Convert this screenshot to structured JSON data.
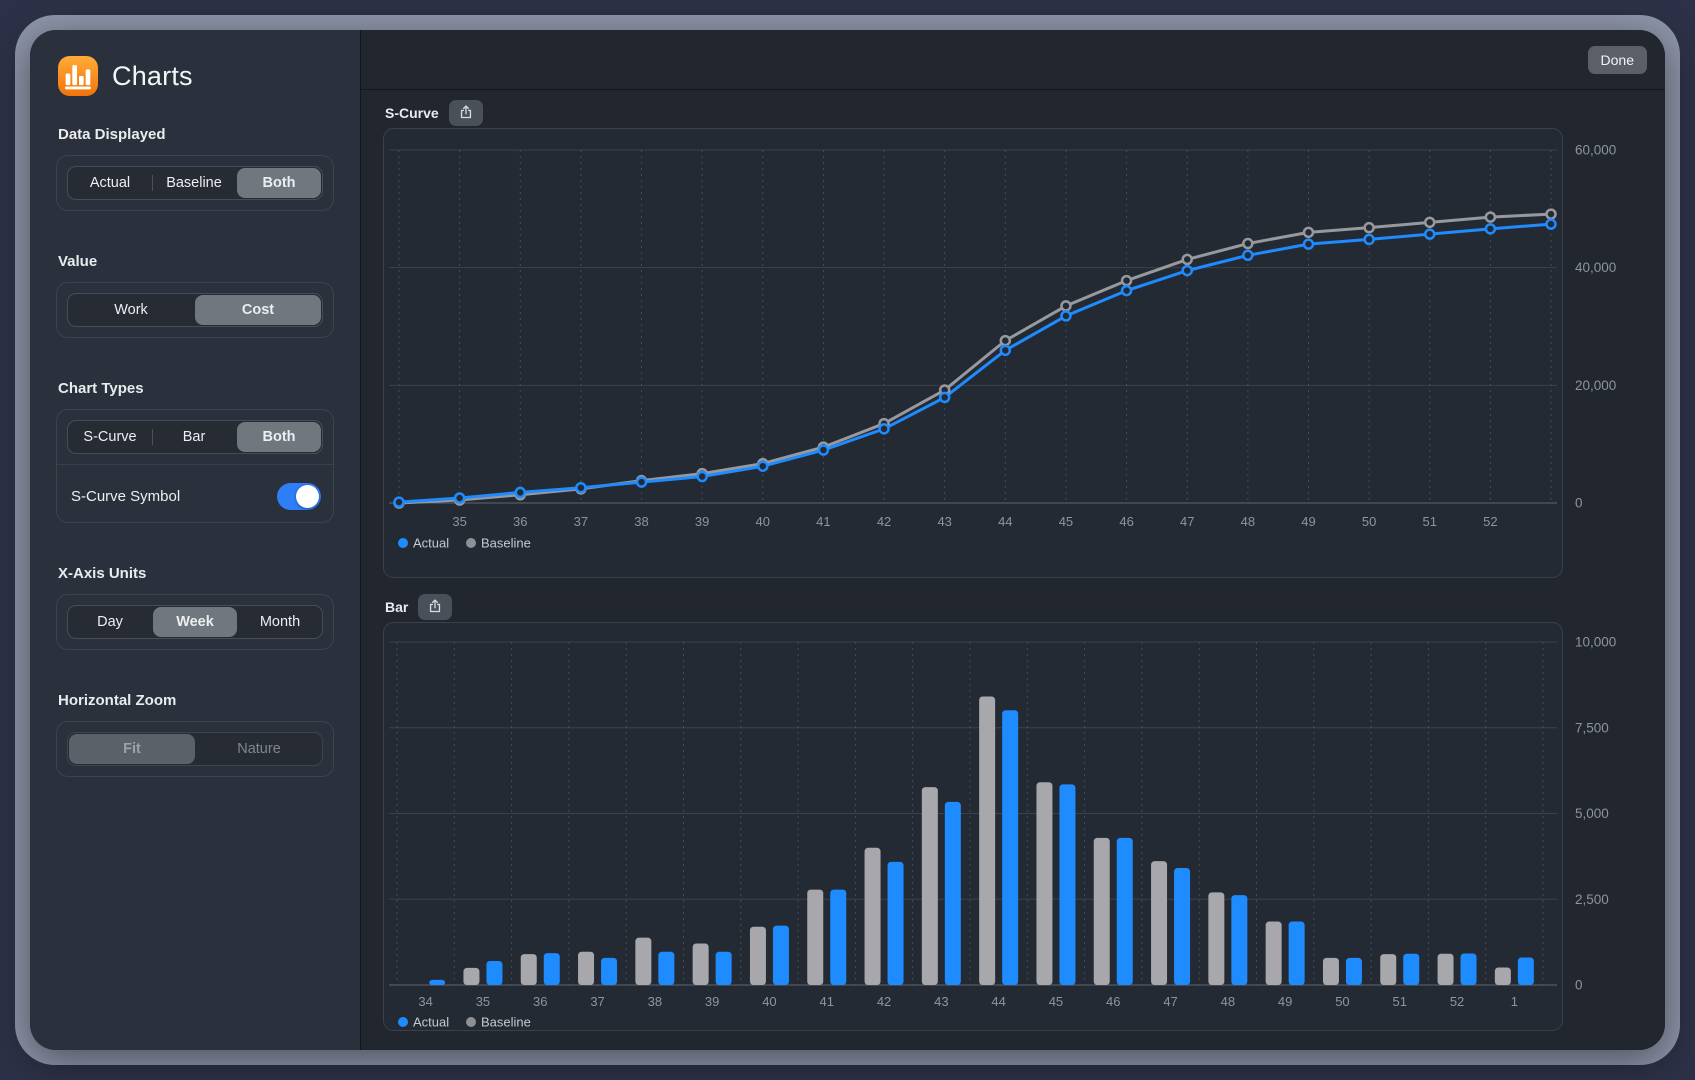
{
  "topbar": {
    "done_label": "Done"
  },
  "sidebar": {
    "app_title": "Charts",
    "data_displayed": {
      "label": "Data Displayed",
      "options": [
        "Actual",
        "Baseline",
        "Both"
      ],
      "selected": "Both"
    },
    "value": {
      "label": "Value",
      "options": [
        "Work",
        "Cost"
      ],
      "selected": "Cost"
    },
    "chart_types": {
      "label": "Chart Types",
      "options": [
        "S-Curve",
        "Bar",
        "Both"
      ],
      "selected": "Both"
    },
    "scurve_symbol": {
      "label": "S-Curve Symbol",
      "state": "on"
    },
    "x_axis_units": {
      "label": "X-Axis Units",
      "options": [
        "Day",
        "Week",
        "Month"
      ],
      "selected": "Week"
    },
    "horizontal_zoom": {
      "label": "Horizontal Zoom",
      "options": [
        "Fit",
        "Nature"
      ],
      "selected": "Fit",
      "disabled": true
    }
  },
  "colors": {
    "accent_blue": "#1E8BFF",
    "baseline_gray": "#A7A7AC",
    "toggle_blue": "#2E7EF7",
    "app_icon_orange": "#F4730C"
  },
  "chart_data": [
    {
      "type": "line",
      "title": "S-Curve",
      "x_tick_labels": [
        "",
        "35",
        "36",
        "37",
        "38",
        "39",
        "40",
        "41",
        "42",
        "43",
        "44",
        "45",
        "46",
        "47",
        "48",
        "49",
        "50",
        "51",
        "52",
        ""
      ],
      "x_weeks": [
        34,
        35,
        36,
        37,
        38,
        39,
        40,
        41,
        42,
        43,
        44,
        45,
        46,
        47,
        48,
        49,
        50,
        51,
        52,
        1
      ],
      "ylim": [
        0,
        60000
      ],
      "yticks": [
        0,
        20000,
        40000,
        60000
      ],
      "ytick_labels": [
        "0",
        "20,000",
        "40,000",
        "60,000"
      ],
      "grid": true,
      "legend_position": "bottom-left",
      "series": [
        {
          "name": "Baseline",
          "color": "#97999E",
          "values": [
            0,
            500,
            1400,
            2400,
            3800,
            5000,
            6700,
            9500,
            13500,
            19200,
            27600,
            33500,
            37800,
            41400,
            44100,
            46000,
            46800,
            47700,
            48600,
            49100
          ]
        },
        {
          "name": "Actual",
          "color": "#1E8BFF",
          "values": [
            150,
            850,
            1800,
            2600,
            3550,
            4500,
            6250,
            9000,
            12600,
            17950,
            25950,
            31800,
            36100,
            39500,
            42100,
            44000,
            44800,
            45700,
            46600,
            47400
          ]
        }
      ],
      "legend": [
        {
          "label": "Actual",
          "color": "#1E8BFF"
        },
        {
          "label": "Baseline",
          "color": "#8E9095"
        }
      ]
    },
    {
      "type": "bar",
      "title": "Bar",
      "x_tick_labels": [
        "34",
        "35",
        "36",
        "37",
        "38",
        "39",
        "40",
        "41",
        "42",
        "43",
        "44",
        "45",
        "46",
        "47",
        "48",
        "49",
        "50",
        "51",
        "52",
        "1"
      ],
      "ylim": [
        0,
        10000
      ],
      "yticks": [
        0,
        2500,
        5000,
        7500,
        10000
      ],
      "ytick_labels": [
        "0",
        "2,500",
        "5,000",
        "7,500",
        "10,000"
      ],
      "grid": true,
      "legend_position": "bottom-left",
      "series": [
        {
          "name": "Baseline",
          "color": "#A7A7AC",
          "values": [
            0,
            500,
            900,
            970,
            1380,
            1210,
            1700,
            2780,
            4000,
            5770,
            8410,
            5910,
            4290,
            3610,
            2700,
            1850,
            790,
            900,
            910,
            510
          ]
        },
        {
          "name": "Actual",
          "color": "#1E8BFF",
          "values": [
            150,
            700,
            930,
            790,
            970,
            970,
            1730,
            2780,
            3590,
            5340,
            8010,
            5850,
            4290,
            3410,
            2620,
            1850,
            790,
            910,
            920,
            800
          ]
        }
      ],
      "legend": [
        {
          "label": "Actual",
          "color": "#1E8BFF"
        },
        {
          "label": "Baseline",
          "color": "#8E9095"
        }
      ]
    }
  ]
}
